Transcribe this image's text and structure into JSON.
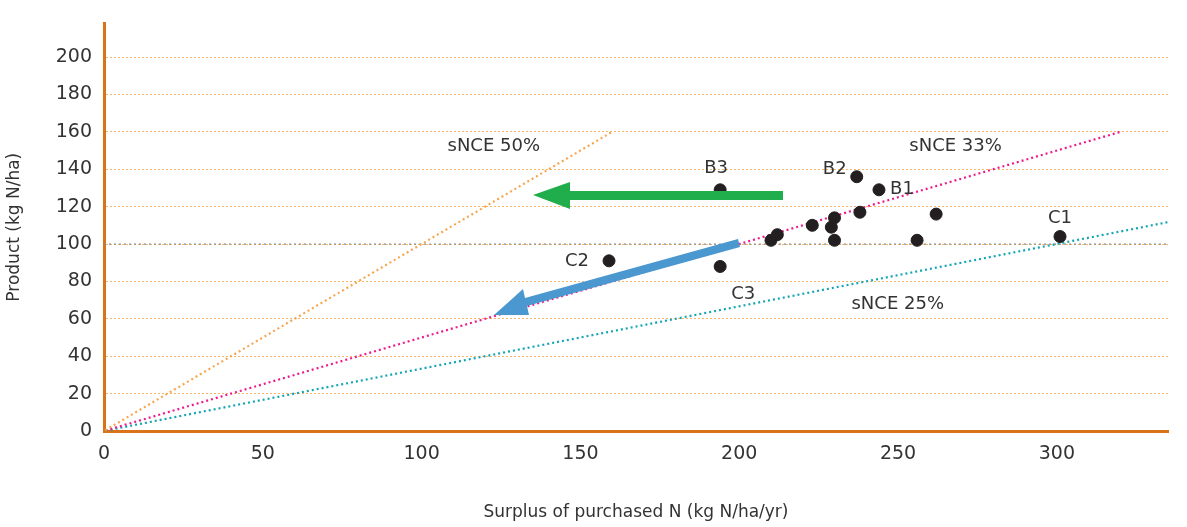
{
  "chart_data": {
    "type": "scatter",
    "xlabel": "Surplus of purchased N (kg N/ha/yr)",
    "ylabel": "Product (kg N/ha)",
    "xlim": [
      0,
      335
    ],
    "xticks": [
      0,
      50,
      100,
      150,
      200,
      250,
      300
    ],
    "ylim": [
      0,
      218
    ],
    "yticks": [
      0,
      20,
      40,
      60,
      80,
      100,
      120,
      140,
      160,
      180,
      200
    ],
    "grid": "y",
    "legend": false,
    "marker": "circle",
    "series": [
      {
        "color": "#231f20",
        "x": [
          194,
          194,
          159,
          210,
          212,
          223,
          229,
          230,
          230,
          238,
          237,
          244,
          256,
          262,
          301
        ],
        "values": [
          129,
          88,
          91,
          102,
          105,
          110,
          109,
          114,
          102,
          117,
          136,
          129,
          102,
          116,
          104
        ]
      },
      {
        "type": "line",
        "name": "sNCE 50%",
        "color": "#f7a54f",
        "x": [
          0,
          160
        ],
        "values": [
          0,
          160
        ],
        "line_style": "dotted",
        "marker": "none"
      },
      {
        "type": "line",
        "name": "sNCE 33%",
        "color": "#ec1c8c",
        "x": [
          0,
          320
        ],
        "values": [
          0,
          160
        ],
        "line_style": "dotted",
        "marker": "none"
      },
      {
        "type": "line",
        "name": "sNCE 25%",
        "color": "#14a5b5",
        "x": [
          0,
          335
        ],
        "values": [
          0,
          111.7
        ],
        "line_style": "dotted",
        "marker": "none"
      }
    ],
    "ref_lines": [
      {
        "axis": "y",
        "value": 100,
        "color": "#8c8c8c",
        "line_style": "dotted"
      }
    ],
    "annotations": [
      {
        "text": "B3",
        "x": 194,
        "y": 129
      },
      {
        "text": "C3",
        "x": 194,
        "y": 88
      },
      {
        "text": "C2",
        "x": 159,
        "y": 91
      },
      {
        "text": "B2",
        "x": 237,
        "y": 136
      },
      {
        "text": "B1",
        "x": 244,
        "y": 129
      },
      {
        "text": "C1",
        "x": 301,
        "y": 104
      }
    ]
  }
}
